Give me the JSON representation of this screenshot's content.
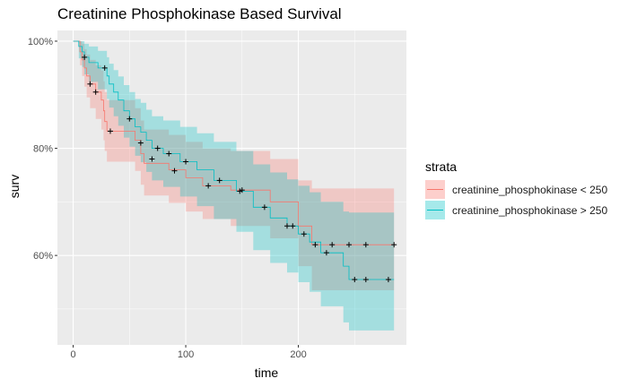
{
  "chart_data": {
    "type": "line",
    "subtype": "kaplan-meier",
    "title": "Creatinine Phosphokinase Based Survival",
    "xlabel": "time",
    "ylabel": "surv",
    "xlim": [
      -14,
      296
    ],
    "ylim": [
      0.433,
      1.02
    ],
    "x_ticks": [
      0,
      100,
      200
    ],
    "x_tick_labels": [
      "0",
      "100",
      "200"
    ],
    "y_ticks": [
      0.6,
      0.8,
      1.0
    ],
    "y_tick_labels": [
      "60%",
      "80%",
      "100%"
    ],
    "grid": true,
    "legend_title": "strata",
    "legend_position": "right",
    "series": [
      {
        "name": "creatinine_phosphokinase < 250",
        "color": "#F8766D",
        "fill": "#F8766D",
        "steps": [
          [
            0,
            1.0
          ],
          [
            6,
            0.98
          ],
          [
            8,
            0.965
          ],
          [
            10,
            0.95
          ],
          [
            12,
            0.935
          ],
          [
            15,
            0.92
          ],
          [
            20,
            0.905
          ],
          [
            25,
            0.89
          ],
          [
            27,
            0.87
          ],
          [
            28,
            0.85
          ],
          [
            30,
            0.832
          ],
          [
            55,
            0.815
          ],
          [
            60,
            0.79
          ],
          [
            63,
            0.772
          ],
          [
            85,
            0.76
          ],
          [
            100,
            0.745
          ],
          [
            115,
            0.73
          ],
          [
            140,
            0.722
          ],
          [
            175,
            0.7
          ],
          [
            200,
            0.655
          ],
          [
            212,
            0.62
          ],
          [
            230,
            0.62
          ],
          [
            285,
            0.62
          ]
        ],
        "upper": [
          [
            0,
            1.0
          ],
          [
            6,
            1.0
          ],
          [
            8,
            0.995
          ],
          [
            10,
            0.985
          ],
          [
            12,
            0.975
          ],
          [
            15,
            0.965
          ],
          [
            20,
            0.955
          ],
          [
            25,
            0.945
          ],
          [
            27,
            0.925
          ],
          [
            28,
            0.905
          ],
          [
            30,
            0.89
          ],
          [
            55,
            0.875
          ],
          [
            60,
            0.852
          ],
          [
            63,
            0.835
          ],
          [
            85,
            0.825
          ],
          [
            100,
            0.812
          ],
          [
            115,
            0.8
          ],
          [
            140,
            0.795
          ],
          [
            175,
            0.78
          ],
          [
            200,
            0.74
          ],
          [
            212,
            0.725
          ],
          [
            285,
            0.725
          ]
        ],
        "lower": [
          [
            0,
            1.0
          ],
          [
            6,
            0.955
          ],
          [
            8,
            0.935
          ],
          [
            10,
            0.915
          ],
          [
            12,
            0.895
          ],
          [
            15,
            0.875
          ],
          [
            20,
            0.855
          ],
          [
            25,
            0.835
          ],
          [
            27,
            0.815
          ],
          [
            28,
            0.795
          ],
          [
            30,
            0.775
          ],
          [
            55,
            0.758
          ],
          [
            60,
            0.732
          ],
          [
            63,
            0.712
          ],
          [
            85,
            0.698
          ],
          [
            100,
            0.682
          ],
          [
            115,
            0.668
          ],
          [
            140,
            0.655
          ],
          [
            175,
            0.632
          ],
          [
            200,
            0.58
          ],
          [
            212,
            0.535
          ],
          [
            285,
            0.535
          ]
        ],
        "censored": [
          [
            15,
            0.92
          ],
          [
            20,
            0.905
          ],
          [
            33,
            0.832
          ],
          [
            60,
            0.81
          ],
          [
            70,
            0.78
          ],
          [
            90,
            0.758
          ],
          [
            120,
            0.73
          ],
          [
            150,
            0.722
          ],
          [
            190,
            0.655
          ],
          [
            215,
            0.62
          ],
          [
            230,
            0.62
          ],
          [
            245,
            0.62
          ],
          [
            260,
            0.62
          ],
          [
            285,
            0.62
          ]
        ]
      },
      {
        "name": "creatinine_phosphokinase > 250",
        "color": "#00BFC4",
        "fill": "#00BFC4",
        "steps": [
          [
            0,
            1.0
          ],
          [
            5,
            0.99
          ],
          [
            8,
            0.98
          ],
          [
            10,
            0.97
          ],
          [
            14,
            0.96
          ],
          [
            22,
            0.95
          ],
          [
            30,
            0.935
          ],
          [
            32,
            0.92
          ],
          [
            36,
            0.905
          ],
          [
            40,
            0.89
          ],
          [
            45,
            0.87
          ],
          [
            50,
            0.855
          ],
          [
            55,
            0.84
          ],
          [
            60,
            0.83
          ],
          [
            65,
            0.815
          ],
          [
            70,
            0.8
          ],
          [
            80,
            0.79
          ],
          [
            95,
            0.775
          ],
          [
            110,
            0.76
          ],
          [
            125,
            0.74
          ],
          [
            145,
            0.72
          ],
          [
            160,
            0.69
          ],
          [
            175,
            0.67
          ],
          [
            190,
            0.655
          ],
          [
            200,
            0.64
          ],
          [
            210,
            0.625
          ],
          [
            220,
            0.605
          ],
          [
            240,
            0.58
          ],
          [
            245,
            0.555
          ],
          [
            285,
            0.555
          ]
        ],
        "upper": [
          [
            0,
            1.0
          ],
          [
            5,
            1.0
          ],
          [
            8,
            1.0
          ],
          [
            10,
            0.995
          ],
          [
            14,
            0.99
          ],
          [
            22,
            0.982
          ],
          [
            30,
            0.97
          ],
          [
            32,
            0.958
          ],
          [
            36,
            0.946
          ],
          [
            40,
            0.934
          ],
          [
            45,
            0.918
          ],
          [
            50,
            0.905
          ],
          [
            55,
            0.892
          ],
          [
            60,
            0.885
          ],
          [
            65,
            0.872
          ],
          [
            70,
            0.86
          ],
          [
            80,
            0.852
          ],
          [
            95,
            0.84
          ],
          [
            110,
            0.828
          ],
          [
            125,
            0.812
          ],
          [
            145,
            0.795
          ],
          [
            160,
            0.77
          ],
          [
            175,
            0.755
          ],
          [
            190,
            0.742
          ],
          [
            200,
            0.73
          ],
          [
            210,
            0.718
          ],
          [
            220,
            0.7
          ],
          [
            240,
            0.682
          ],
          [
            245,
            0.68
          ],
          [
            285,
            0.68
          ]
        ],
        "lower": [
          [
            0,
            1.0
          ],
          [
            5,
            0.968
          ],
          [
            8,
            0.952
          ],
          [
            10,
            0.938
          ],
          [
            14,
            0.924
          ],
          [
            22,
            0.91
          ],
          [
            30,
            0.892
          ],
          [
            32,
            0.876
          ],
          [
            36,
            0.86
          ],
          [
            40,
            0.842
          ],
          [
            45,
            0.82
          ],
          [
            50,
            0.803
          ],
          [
            55,
            0.786
          ],
          [
            60,
            0.774
          ],
          [
            65,
            0.756
          ],
          [
            70,
            0.74
          ],
          [
            80,
            0.728
          ],
          [
            95,
            0.71
          ],
          [
            110,
            0.692
          ],
          [
            125,
            0.668
          ],
          [
            145,
            0.644
          ],
          [
            160,
            0.61
          ],
          [
            175,
            0.586
          ],
          [
            190,
            0.568
          ],
          [
            200,
            0.55
          ],
          [
            210,
            0.532
          ],
          [
            220,
            0.505
          ],
          [
            240,
            0.475
          ],
          [
            245,
            0.46
          ],
          [
            285,
            0.46
          ]
        ],
        "censored": [
          [
            10,
            0.97
          ],
          [
            28,
            0.95
          ],
          [
            50,
            0.855
          ],
          [
            75,
            0.8
          ],
          [
            85,
            0.79
          ],
          [
            100,
            0.775
          ],
          [
            130,
            0.74
          ],
          [
            148,
            0.72
          ],
          [
            170,
            0.69
          ],
          [
            195,
            0.655
          ],
          [
            205,
            0.64
          ],
          [
            225,
            0.605
          ],
          [
            250,
            0.555
          ],
          [
            260,
            0.555
          ],
          [
            280,
            0.555
          ]
        ]
      }
    ]
  }
}
